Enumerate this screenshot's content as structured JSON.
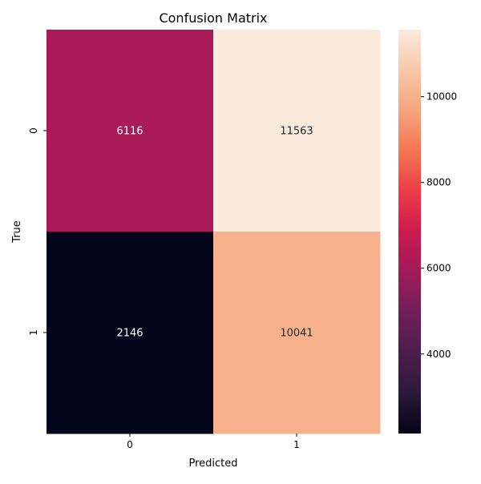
{
  "chart_data": {
    "type": "heatmap",
    "title": "Confusion Matrix",
    "xlabel": "Predicted",
    "ylabel": "True",
    "x_categories": [
      "0",
      "1"
    ],
    "y_categories": [
      "0",
      "1"
    ],
    "values": [
      [
        6116,
        11563
      ],
      [
        2146,
        10041
      ]
    ],
    "annotation_format": "d",
    "colormap": "rocket",
    "color_range": [
      2146,
      11563
    ],
    "colorbar": {
      "ticks": [
        4000,
        6000,
        8000,
        10000
      ],
      "tick_labels": [
        "4000",
        "6000",
        "8000",
        "10000"
      ]
    },
    "cmap_stops": [
      "#03051a",
      "#2b1a39",
      "#4c1d4b",
      "#701f57",
      "#a11a5b",
      "#cb1b4f",
      "#ed3c48",
      "#f37651",
      "#f6a47c",
      "#f8c8a9",
      "#faebdd"
    ],
    "label_colors": {
      "light": "#ffffff",
      "dark": "#262626"
    }
  }
}
